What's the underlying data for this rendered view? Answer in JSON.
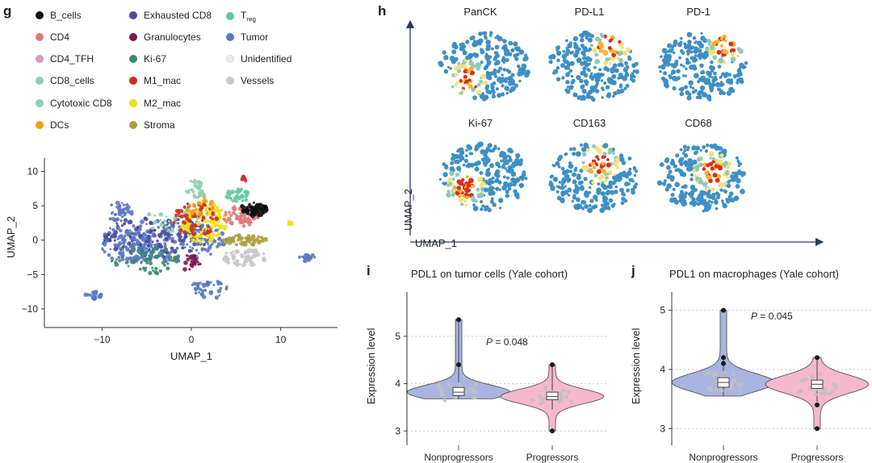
{
  "panel_letters": {
    "g": "g",
    "h": "h",
    "i": "i",
    "j": "j"
  },
  "legend": [
    {
      "label": "B_cells",
      "color": "#111111"
    },
    {
      "label": "CD4",
      "color": "#e07b7b"
    },
    {
      "label": "CD4_TFH",
      "color": "#d89ac2"
    },
    {
      "label": "CD8_cells",
      "color": "#8ed0b0"
    },
    {
      "label": "Cytotoxic CD8",
      "color": "#8ed0b0"
    },
    {
      "label": "DCs",
      "color": "#f0a020"
    },
    {
      "label": "Exhausted CD8",
      "color": "#4a4a9a"
    },
    {
      "label": "Granulocytes",
      "color": "#7a1a4a"
    },
    {
      "label": "Ki-67",
      "color": "#3a8a70"
    },
    {
      "label": "M1_mac",
      "color": "#d02a20"
    },
    {
      "label": "M2_mac",
      "color": "#f0e020"
    },
    {
      "label": "Stroma",
      "color": "#a8a040"
    },
    {
      "label": "T",
      "sub": "reg",
      "color": "#5ec8a0"
    },
    {
      "label": "Tumor",
      "color": "#5a78c0"
    },
    {
      "label": "Unidentified",
      "color": "#e8ece8"
    },
    {
      "label": "Vessels",
      "color": "#c8c8c8"
    }
  ],
  "chart_data": [
    {
      "id": "g",
      "type": "scatter",
      "title": "",
      "xlabel": "UMAP_1",
      "ylabel": "UMAP_2",
      "xlim": [
        -16,
        16
      ],
      "ylim": [
        -12,
        11
      ],
      "xticks": [
        -10,
        0,
        10
      ],
      "yticks": [
        10,
        5,
        0,
        -5,
        -10
      ],
      "xtick_labels": [
        "−10",
        "0",
        "10"
      ],
      "ytick_labels": [
        "10",
        "5",
        "0",
        "−5",
        "−10"
      ]
    },
    {
      "id": "h",
      "type": "scatter",
      "xlabel": "UMAP_1",
      "ylabel": "UMAP_2",
      "panels": [
        "PanCK",
        "PD-L1",
        "PD-1",
        "Ki-67",
        "CD163",
        "CD68"
      ]
    },
    {
      "id": "i",
      "type": "violin",
      "title": "PDL1 on tumor cells (Yale cohort)",
      "ylabel": "Expression level",
      "ylim": [
        2.8,
        5.8
      ],
      "yticks": [
        3,
        4,
        5
      ],
      "categories": [
        "Nonprogressors",
        "Progressors"
      ],
      "colors": [
        "#a9b4e0",
        "#f6b8cc"
      ],
      "medians": [
        3.82,
        3.73
      ],
      "q1": [
        3.75,
        3.66
      ],
      "q3": [
        3.92,
        3.82
      ],
      "whisker_low": [
        3.68,
        3.45
      ],
      "whisker_high": [
        5.3,
        4.4
      ],
      "outliers": [
        [
          5.35,
          4.4
        ],
        [
          4.4,
          3.0
        ]
      ],
      "pvalue_label": "P",
      "pvalue_text": " = 0.048"
    },
    {
      "id": "j",
      "type": "violin",
      "title": "PDL1 on macrophages (Yale cohort)",
      "ylabel": "Expression level",
      "ylim": [
        2.8,
        5.2
      ],
      "yticks": [
        3,
        4,
        5
      ],
      "categories": [
        "Nonprogressors",
        "Progressors"
      ],
      "colors": [
        "#a9b4e0",
        "#f6b8cc"
      ],
      "medians": [
        3.78,
        3.75
      ],
      "q1": [
        3.7,
        3.68
      ],
      "q3": [
        3.86,
        3.82
      ],
      "whisker_low": [
        3.55,
        3.45
      ],
      "whisker_high": [
        4.25,
        4.2
      ],
      "outliers": [
        [
          5.0,
          4.2,
          4.1
        ],
        [
          4.2,
          3.4,
          3.0
        ]
      ],
      "pvalue_label": "P",
      "pvalue_text": " = 0.045"
    }
  ]
}
